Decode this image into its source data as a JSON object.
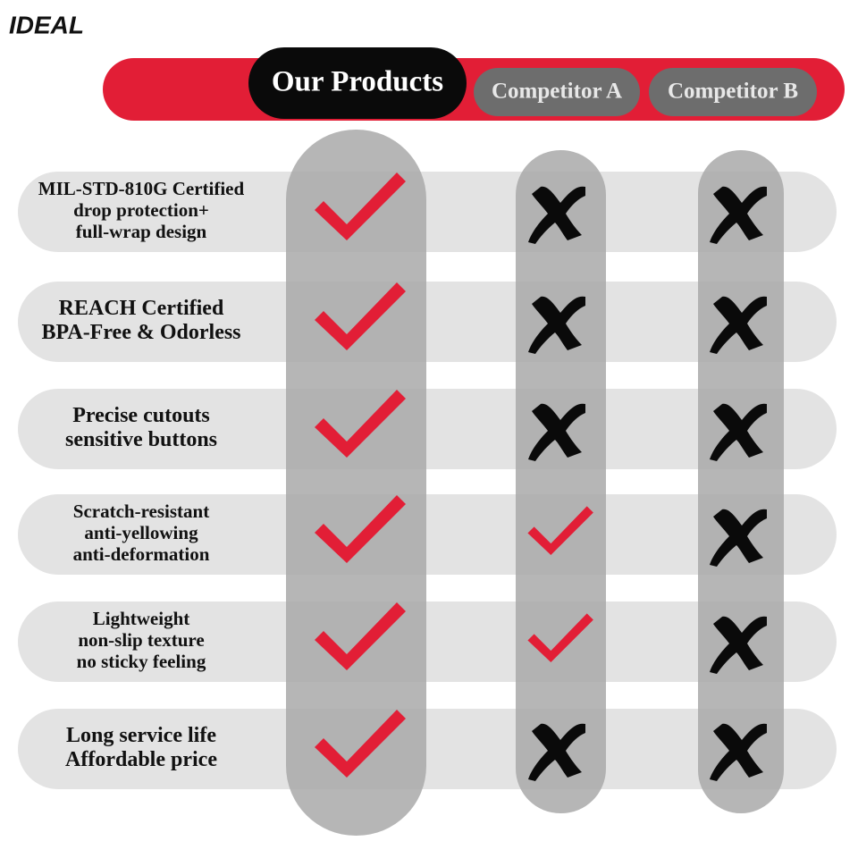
{
  "logo": "IDEAL",
  "header": {
    "columns": [
      "Our Products",
      "Competitor A",
      "Competitor B"
    ]
  },
  "rows": [
    {
      "feature": [
        "MIL-STD-810G Certified",
        "drop protection+",
        "full-wrap design"
      ],
      "marks": [
        true,
        false,
        false
      ]
    },
    {
      "feature": [
        "REACH Certified",
        "BPA-Free & Odorless"
      ],
      "marks": [
        true,
        false,
        false
      ]
    },
    {
      "feature": [
        "Precise cutouts",
        "sensitive buttons"
      ],
      "marks": [
        true,
        false,
        false
      ]
    },
    {
      "feature": [
        "Scratch-resistant",
        "anti-yellowing",
        "anti-deformation"
      ],
      "marks": [
        true,
        true,
        false
      ]
    },
    {
      "feature": [
        "Lightweight",
        "non-slip texture",
        "no sticky feeling"
      ],
      "marks": [
        true,
        true,
        false
      ]
    },
    {
      "feature": [
        "Long service life",
        "Affordable price"
      ],
      "marks": [
        true,
        false,
        false
      ]
    }
  ]
}
